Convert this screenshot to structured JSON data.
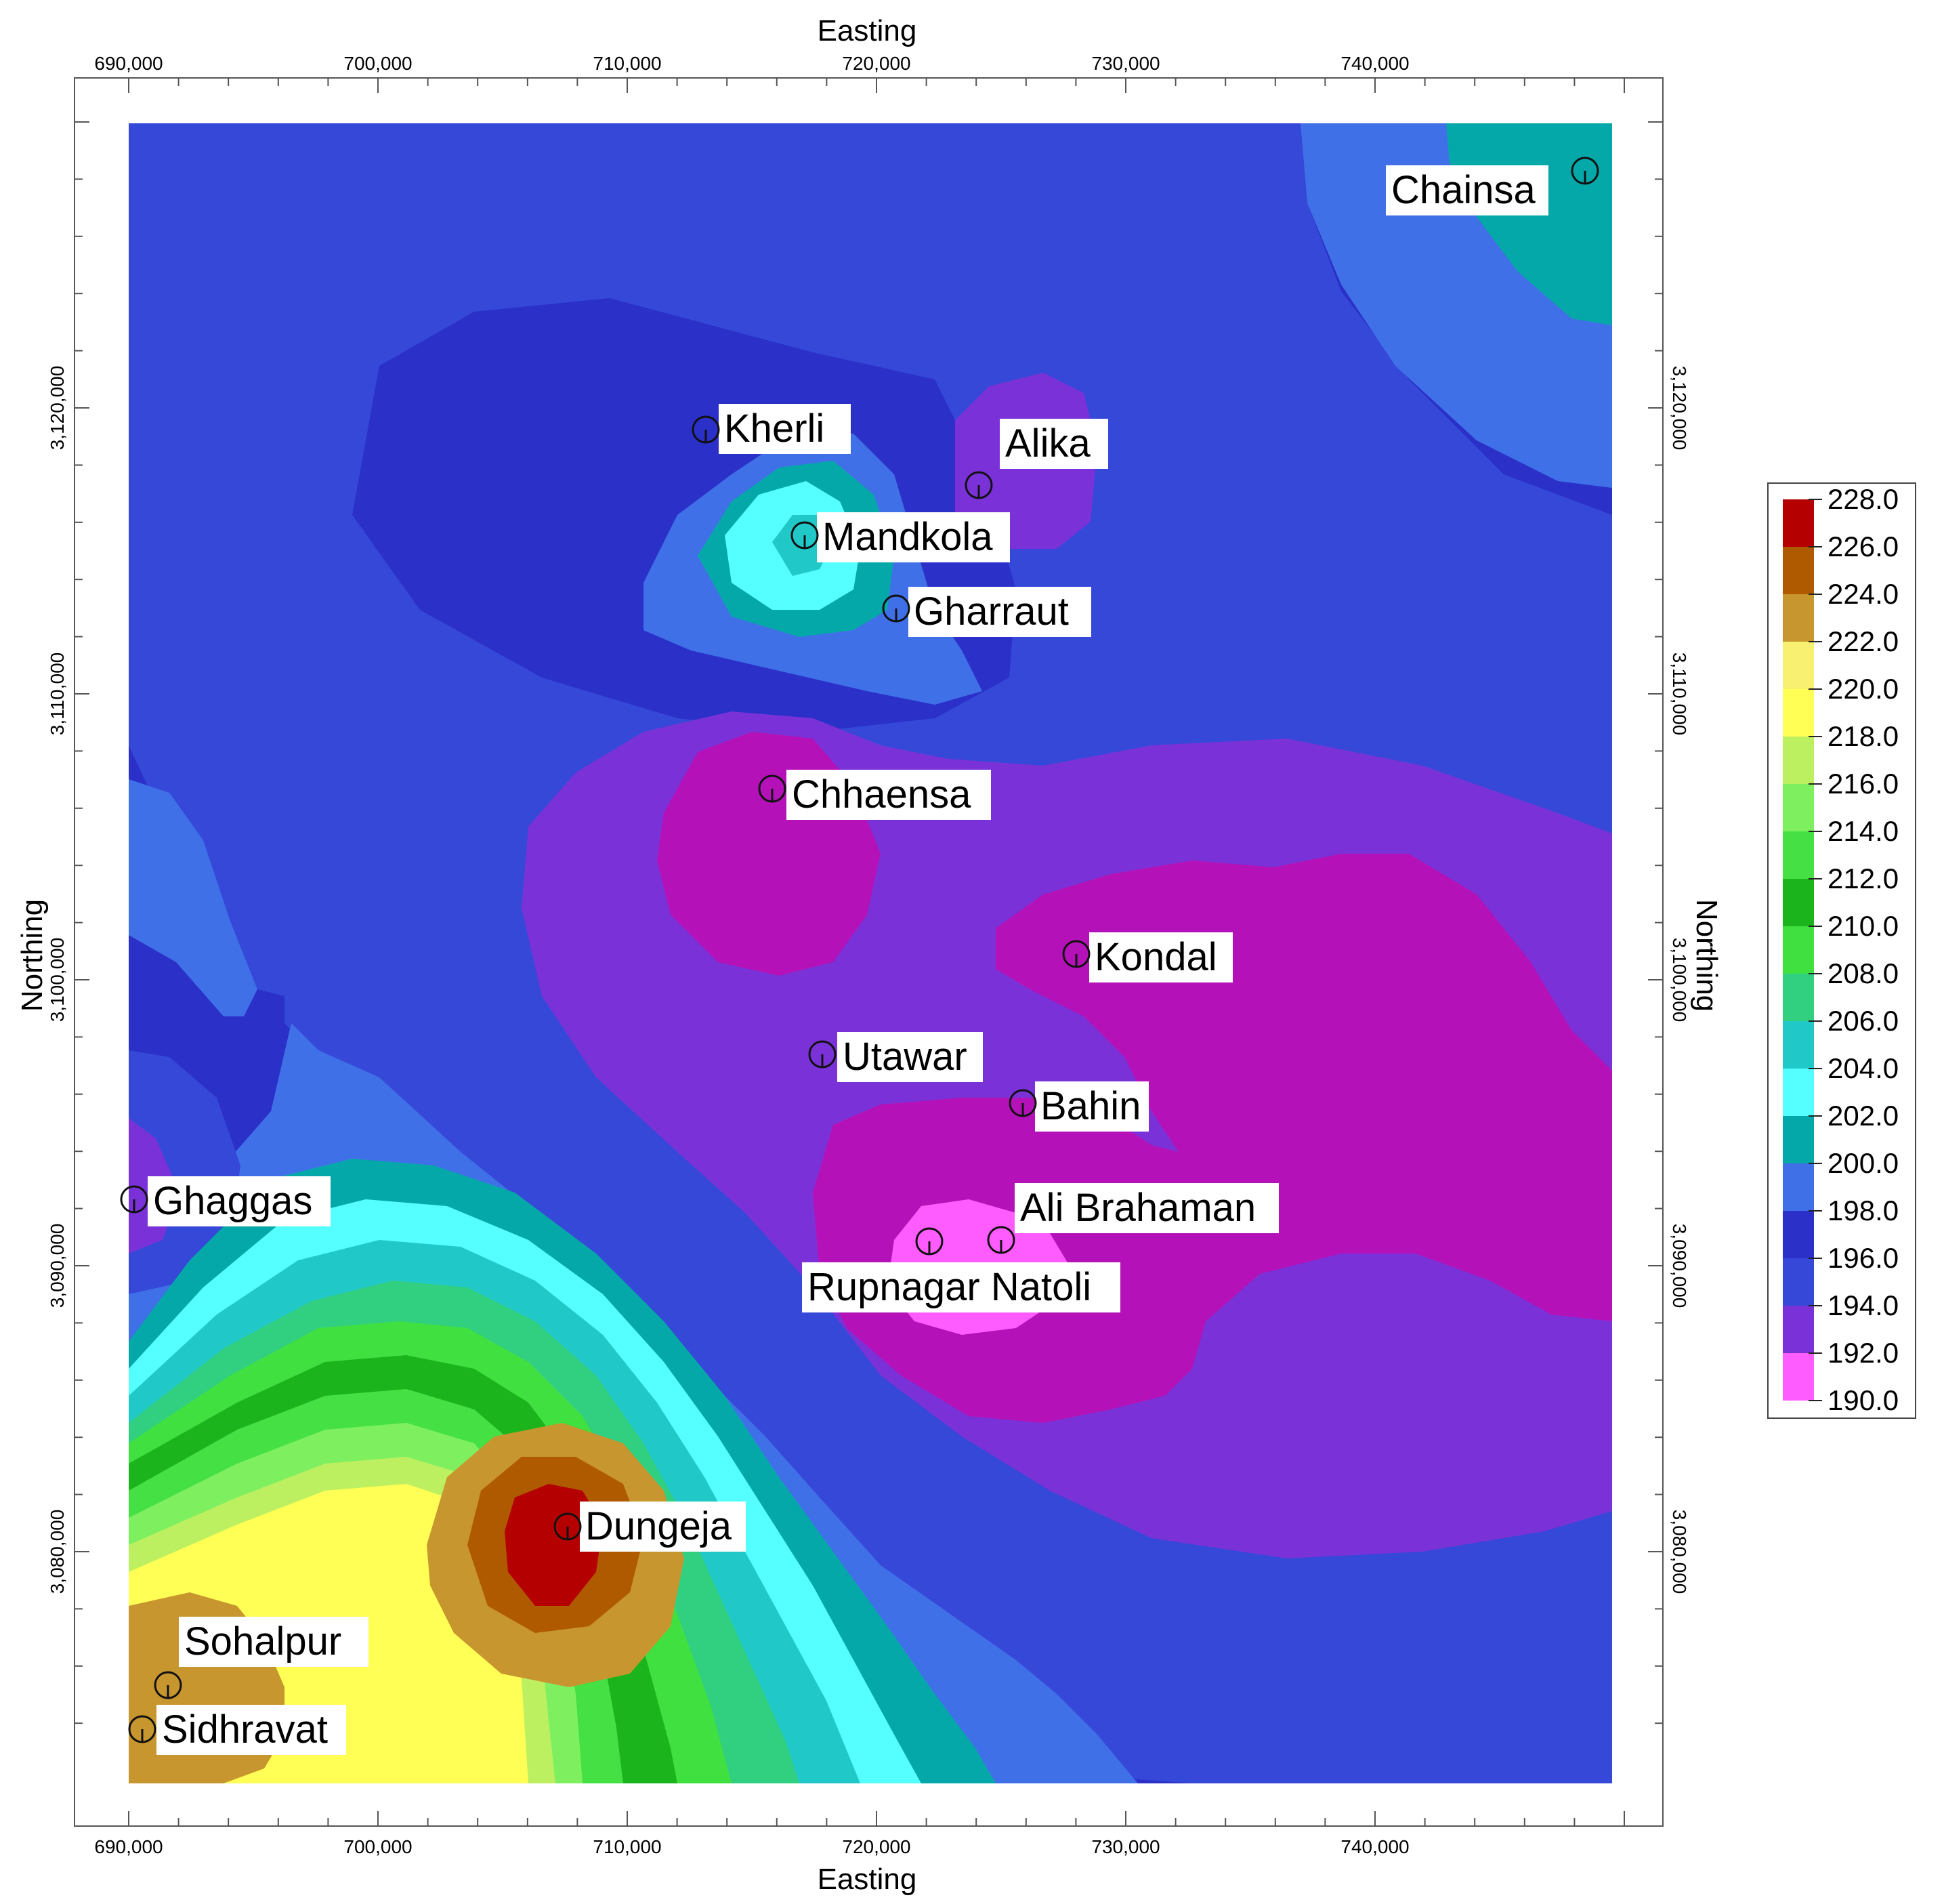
{
  "axes": {
    "top_title": "Easting",
    "bottom_title": "Easting",
    "left_title": "Northing",
    "right_title": "Northing",
    "easting_ticks": [
      "690,000",
      "700,000",
      "710,000",
      "720,000",
      "730,000",
      "740,000"
    ],
    "northing_ticks": [
      "3,080,000",
      "3,090,000",
      "3,100,000",
      "3,110,000",
      "3,120,000"
    ]
  },
  "legend": {
    "values": [
      "228.0",
      "226.0",
      "224.0",
      "222.0",
      "220.0",
      "218.0",
      "216.0",
      "214.0",
      "212.0",
      "210.0",
      "208.0",
      "206.0",
      "204.0",
      "202.0",
      "200.0",
      "198.0",
      "196.0",
      "194.0",
      "192.0",
      "190.0"
    ],
    "colors": [
      "#b40000",
      "#b05a00",
      "#c8962e",
      "#f8f070",
      "#ffff55",
      "#bdf060",
      "#7ef060",
      "#44e044",
      "#1cb41c",
      "#40e040",
      "#30d080",
      "#20c8c8",
      "#55ffff",
      "#05a8a8",
      "#4070e8",
      "#2a30c8",
      "#3548d8",
      "#7a32d8",
      "#b412b8",
      "#ff5cff"
    ]
  },
  "places": [
    {
      "name": "Chainsa"
    },
    {
      "name": "Kherli"
    },
    {
      "name": "Alika"
    },
    {
      "name": "Mandkola"
    },
    {
      "name": "Gharraut"
    },
    {
      "name": "Chhaensa"
    },
    {
      "name": "Kondal"
    },
    {
      "name": "Utawar"
    },
    {
      "name": "Bahin"
    },
    {
      "name": "Ghaggas"
    },
    {
      "name": "Ali Brahaman"
    },
    {
      "name": "Rupnagar Natoli"
    },
    {
      "name": "Dungeja"
    },
    {
      "name": "Sohalpur"
    },
    {
      "name": "Sidhravat"
    }
  ]
}
